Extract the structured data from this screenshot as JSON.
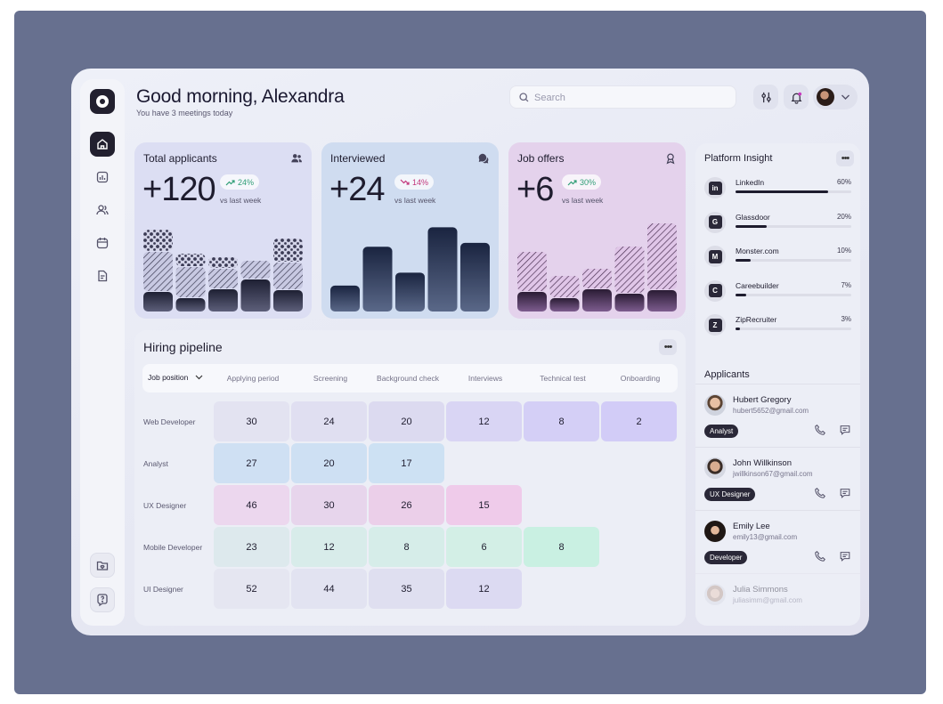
{
  "header": {
    "greeting": "Good morning, Alexandra",
    "subtitle": "You have 3 meetings today",
    "search_placeholder": "Search"
  },
  "sidebar": {
    "items": [
      {
        "name": "home",
        "icon": "home-icon",
        "active": true
      },
      {
        "name": "analytics",
        "icon": "chart-icon"
      },
      {
        "name": "people",
        "icon": "users-icon"
      },
      {
        "name": "calendar",
        "icon": "calendar-icon"
      },
      {
        "name": "documents",
        "icon": "document-icon"
      }
    ],
    "bottom": [
      {
        "name": "inbox",
        "icon": "folder-heart-icon"
      },
      {
        "name": "help",
        "icon": "help-icon"
      }
    ]
  },
  "stats": [
    {
      "title": "Total applicants",
      "value": "+120",
      "change": "24%",
      "direction": "up",
      "compare": "vs last week",
      "accent": "#2f9e76",
      "bg": "#dcdef3"
    },
    {
      "title": "Interviewed",
      "value": "+24",
      "change": "14%",
      "direction": "down",
      "compare": "vs last week",
      "accent": "#c2367b",
      "bg": "#cfdcf0"
    },
    {
      "title": "Job offers",
      "value": "+6",
      "change": "30%",
      "direction": "up",
      "compare": "vs last week",
      "accent": "#2f9e76",
      "bg": "#e4d2ec"
    }
  ],
  "chart_data": [
    {
      "type": "bar",
      "title": "Total applicants",
      "values": [
        2,
        1.5,
        2.5,
        3.5,
        2.5
      ]
    },
    {
      "type": "bar",
      "title": "Interviewed",
      "values": [
        2,
        5,
        3,
        6.5,
        5.3
      ]
    },
    {
      "type": "bar",
      "title": "Job offers",
      "values": [
        2,
        1.5,
        2.5,
        1.8,
        2.5
      ]
    }
  ],
  "pipeline": {
    "title": "Hiring pipeline",
    "position_label": "Job position",
    "columns": [
      "Applying period",
      "Screening",
      "Background check",
      "Interviews",
      "Technical test",
      "Onboarding"
    ],
    "rows": [
      {
        "label": "Web Developer",
        "values": [
          "30",
          "24",
          "20",
          "12",
          "8",
          "2"
        ]
      },
      {
        "label": "Analyst",
        "values": [
          "27",
          "20",
          "17"
        ]
      },
      {
        "label": "UX Designer",
        "values": [
          "46",
          "30",
          "26",
          "15"
        ]
      },
      {
        "label": "Mobile Developer",
        "values": [
          "23",
          "12",
          "8",
          "6",
          "8"
        ]
      },
      {
        "label": "UI Designer",
        "values": [
          "52",
          "44",
          "35",
          "12"
        ]
      }
    ]
  },
  "insight": {
    "title": "Platform Insight",
    "platforms": [
      {
        "name": "LinkedIn",
        "pct": "60%",
        "value": 0.6,
        "glyph": "in"
      },
      {
        "name": "Glassdoor",
        "pct": "20%",
        "value": 0.2,
        "glyph": "G"
      },
      {
        "name": "Monster.com",
        "pct": "10%",
        "value": 0.1,
        "glyph": "M"
      },
      {
        "name": "Careebuilder",
        "pct": "7%",
        "value": 0.07,
        "glyph": "C"
      },
      {
        "name": "ZipRecruiter",
        "pct": "3%",
        "value": 0.03,
        "glyph": "Z"
      }
    ]
  },
  "applicants": {
    "title": "Applicants",
    "items": [
      {
        "name": "Hubert Gregory",
        "email": "hubert5652@gmail.com",
        "role": "Analyst"
      },
      {
        "name": "John Willkinson",
        "email": "jwillkinson67@gmail.com",
        "role": "UX Designer"
      },
      {
        "name": "Emily Lee",
        "email": "emily13@gmail.com",
        "role": "Developer"
      },
      {
        "name": "Julia Simmons",
        "email": "juliasimm@gmail.com",
        "role": ""
      }
    ]
  }
}
